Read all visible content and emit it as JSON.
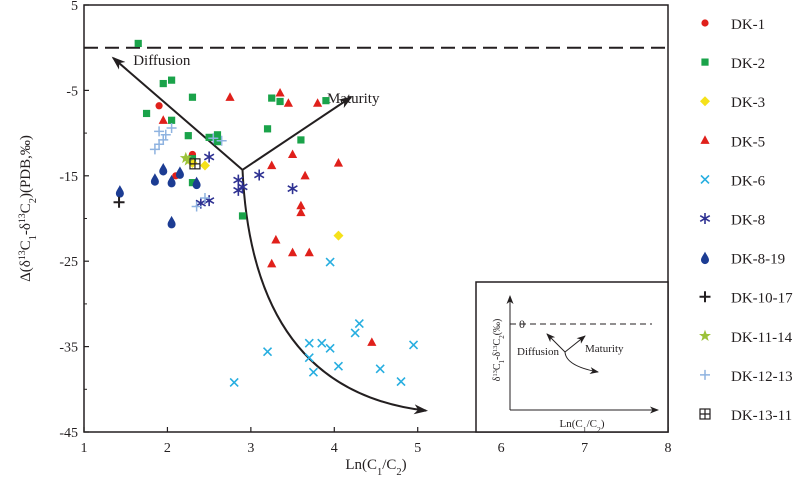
{
  "chart_data": {
    "type": "scatter",
    "xlabel": "Ln(C1/C2)",
    "ylabel": "Δ(δ13C1-δ13C2)(PDB,‰)",
    "xlim": [
      1,
      8
    ],
    "ylim": [
      -45,
      5
    ],
    "xticks": [
      "1",
      "2",
      "3",
      "4",
      "5",
      "6",
      "7",
      "8"
    ],
    "yticks": [
      "5",
      "-5",
      "-15",
      "-25",
      "-35",
      "-45"
    ],
    "ytick_values": [
      5,
      -5,
      -15,
      -25,
      -35,
      -45
    ],
    "xtick_values": [
      1,
      2,
      3,
      4,
      5,
      6,
      7,
      8
    ],
    "reference_line_y": 0,
    "arrows": {
      "diffusion": {
        "label": "Diffusion",
        "from": [
          2.9,
          -14.3
        ],
        "to": [
          1.35,
          -1.2
        ]
      },
      "maturity": {
        "label": "Maturity",
        "from": [
          2.9,
          -14.3
        ],
        "to": [
          4.2,
          -5.8
        ]
      },
      "trend": {
        "from": [
          2.9,
          -14.3
        ],
        "to": [
          5.1,
          -42.5
        ]
      }
    },
    "inset": {
      "ylabel": "δ13C1-δ13C2(‰)",
      "xlabel": "Ln(C1/C2)",
      "zero_label": "0",
      "diffusion_label": "Diffusion",
      "maturity_label": "Maturity"
    },
    "series": [
      {
        "name": "DK-1",
        "marker": "circle",
        "color": "#e0201b",
        "points": [
          [
            1.9,
            -6.8
          ],
          [
            2.1,
            -15
          ],
          [
            2.3,
            -12.5
          ]
        ]
      },
      {
        "name": "DK-2",
        "marker": "square",
        "color": "#1aa34a",
        "points": [
          [
            1.65,
            0.5
          ],
          [
            1.95,
            -4.2
          ],
          [
            2.05,
            -3.8
          ],
          [
            1.75,
            -7.7
          ],
          [
            2.3,
            -5.8
          ],
          [
            2.05,
            -8.5
          ],
          [
            2.25,
            -10.3
          ],
          [
            2.5,
            -10.5
          ],
          [
            2.6,
            -10.2
          ],
          [
            2.6,
            -11
          ],
          [
            2.3,
            -15.8
          ],
          [
            2.3,
            -13
          ],
          [
            2.9,
            -19.7
          ],
          [
            3.25,
            -5.9
          ],
          [
            3.35,
            -6.3
          ],
          [
            3.9,
            -6.2
          ],
          [
            3.2,
            -9.5
          ],
          [
            3.6,
            -10.8
          ]
        ]
      },
      {
        "name": "DK-3",
        "marker": "diamond",
        "color": "#f5e11a",
        "points": [
          [
            2.3,
            -13.5
          ],
          [
            2.45,
            -13.8
          ],
          [
            4.05,
            -22
          ]
        ]
      },
      {
        "name": "DK-5",
        "marker": "triangle",
        "color": "#e0201b",
        "points": [
          [
            1.95,
            -8.5
          ],
          [
            2.75,
            -5.8
          ],
          [
            3.35,
            -5.3
          ],
          [
            3.45,
            -6.5
          ],
          [
            3.8,
            -6.5
          ],
          [
            3.25,
            -13.8
          ],
          [
            3.5,
            -12.5
          ],
          [
            3.65,
            -15
          ],
          [
            3.6,
            -18.5
          ],
          [
            3.6,
            -19.3
          ],
          [
            4.05,
            -13.5
          ],
          [
            3.3,
            -22.5
          ],
          [
            3.5,
            -24
          ],
          [
            3.7,
            -24
          ],
          [
            3.25,
            -25.3
          ],
          [
            4.45,
            -34.5
          ]
        ]
      },
      {
        "name": "DK-6",
        "marker": "x",
        "color": "#27aee0",
        "points": [
          [
            3.95,
            -25.1
          ],
          [
            3.2,
            -35.6
          ],
          [
            3.7,
            -34.6
          ],
          [
            3.85,
            -34.6
          ],
          [
            3.95,
            -35.2
          ],
          [
            3.7,
            -36.3
          ],
          [
            4.25,
            -33.4
          ],
          [
            4.3,
            -32.3
          ],
          [
            2.8,
            -39.2
          ],
          [
            3.75,
            -38.0
          ],
          [
            4.05,
            -37.3
          ],
          [
            4.55,
            -37.6
          ],
          [
            4.8,
            -39.1
          ],
          [
            4.95,
            -34.8
          ]
        ]
      },
      {
        "name": "DK-8",
        "marker": "asterisk",
        "color": "#2e3192",
        "points": [
          [
            2.5,
            -12.8
          ],
          [
            2.85,
            -15.5
          ],
          [
            2.9,
            -16.3
          ],
          [
            2.85,
            -16.7
          ],
          [
            3.1,
            -14.9
          ],
          [
            3.5,
            -16.5
          ],
          [
            2.5,
            -17.9
          ],
          [
            2.4,
            -18.2
          ]
        ]
      },
      {
        "name": "DK-8-19",
        "marker": "drop",
        "color": "#1c3c93",
        "points": [
          [
            1.43,
            -16.8
          ],
          [
            1.85,
            -15.4
          ],
          [
            1.95,
            -14.2
          ],
          [
            2.05,
            -15.6
          ],
          [
            2.15,
            -14.6
          ],
          [
            2.35,
            -15.8
          ],
          [
            2.05,
            -20.4
          ]
        ]
      },
      {
        "name": "DK-10-17",
        "marker": "plus",
        "color": "#231f20",
        "points": [
          [
            1.42,
            -18.1
          ]
        ]
      },
      {
        "name": "DK-11-14",
        "marker": "star",
        "color": "#9cc23a",
        "points": [
          [
            2.22,
            -12.9
          ],
          [
            2.25,
            -13.2
          ]
        ]
      },
      {
        "name": "DK-12-13",
        "marker": "thinplus",
        "color": "#8fb3e0",
        "points": [
          [
            1.9,
            -9.8
          ],
          [
            2.05,
            -9.4
          ],
          [
            1.95,
            -10.8
          ],
          [
            1.9,
            -11.3
          ],
          [
            1.85,
            -11.9
          ],
          [
            1.98,
            -10.2
          ],
          [
            2.55,
            -10.6
          ],
          [
            2.65,
            -10.9
          ],
          [
            2.35,
            -18.6
          ],
          [
            2.45,
            -17.6
          ]
        ]
      },
      {
        "name": "DK-13-11",
        "marker": "boxplus",
        "color": "#231f20",
        "points": [
          [
            2.33,
            -13.6
          ]
        ]
      }
    ]
  }
}
